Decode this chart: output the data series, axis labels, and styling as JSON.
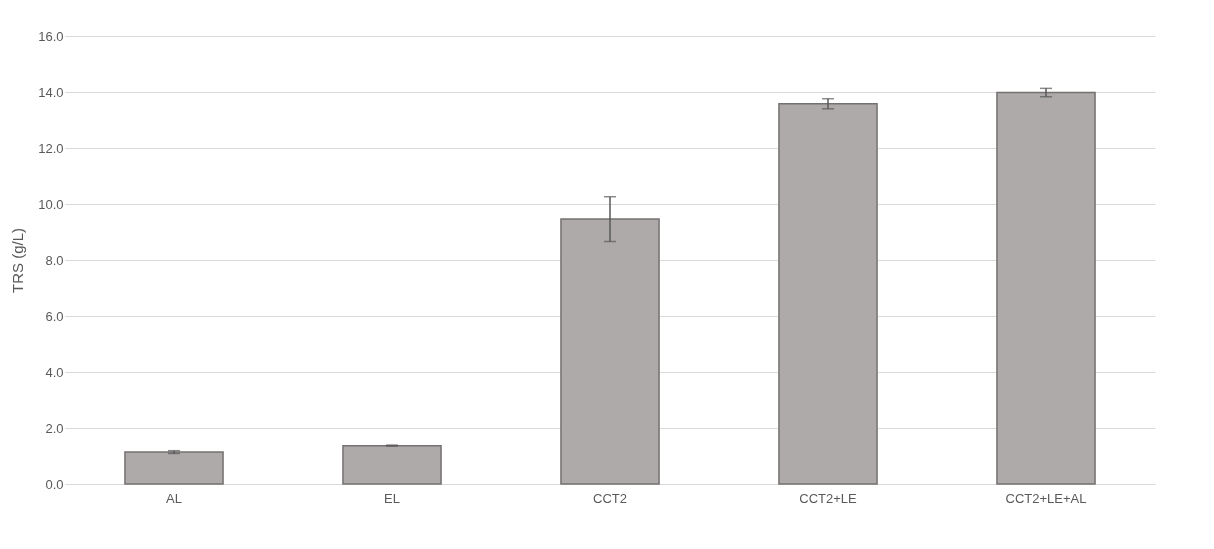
{
  "chart_data": {
    "type": "bar",
    "ylabel": "TRS (g/L)",
    "categories": [
      "AL",
      "EL",
      "CCT2",
      "CCT2+LE",
      "CCT2+LE+AL"
    ],
    "values": [
      1.14,
      1.37,
      9.46,
      13.58,
      13.98
    ],
    "errors": [
      0.05,
      0.02,
      0.8,
      0.18,
      0.15
    ],
    "color": "#aeaaaa",
    "ylim": [
      0,
      16
    ],
    "yticks": [
      {
        "value": 0,
        "label": "0.0"
      },
      {
        "value": 2,
        "label": "2.0"
      },
      {
        "value": 4,
        "label": "4.0"
      },
      {
        "value": 6,
        "label": "6.0"
      },
      {
        "value": 8,
        "label": "8.0"
      },
      {
        "value": 10,
        "label": "10.0"
      },
      {
        "value": 12,
        "label": "12.0"
      },
      {
        "value": 14,
        "label": "14.0"
      },
      {
        "value": 16,
        "label": "16.0"
      }
    ],
    "grid": "y"
  }
}
